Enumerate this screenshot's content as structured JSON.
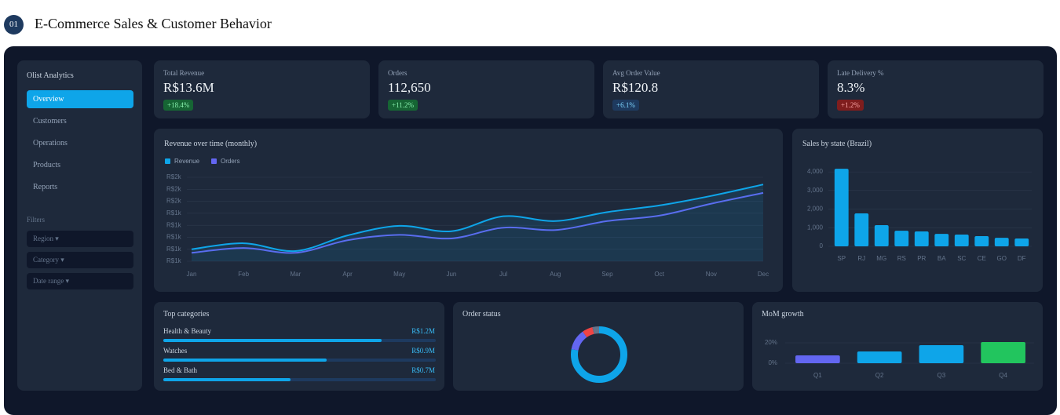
{
  "header": {
    "badge": "01",
    "title": "E-Commerce Sales & Customer Behavior"
  },
  "sidebar": {
    "brand": "Olist Analytics",
    "nav": [
      "Overview",
      "Customers",
      "Operations",
      "Products",
      "Reports"
    ],
    "active": 0,
    "filters_title": "Filters",
    "filters": [
      "Region ▾",
      "Category ▾",
      "Date range ▾"
    ]
  },
  "kpis": [
    {
      "label": "Total Revenue",
      "value": "R$13.6M",
      "delta": "+18.4%",
      "badge_color": "#166534",
      "badge_text": "#86efac"
    },
    {
      "label": "Orders",
      "value": "112,650",
      "delta": "+11.2%",
      "badge_color": "#166534",
      "badge_text": "#86efac"
    },
    {
      "label": "Avg Order Value",
      "value": "R$120.8",
      "delta": "+6.1%",
      "badge_color": "#1e3a5f",
      "badge_text": "#7dd3fc"
    },
    {
      "label": "Late Delivery %",
      "value": "8.3%",
      "delta": "+1.2%",
      "badge_color": "#7f1d1d",
      "badge_text": "#fca5a5"
    }
  ],
  "chart_data": [
    {
      "type": "line",
      "title": "Revenue over time (monthly)",
      "categories": [
        "Jan",
        "Feb",
        "Mar",
        "Apr",
        "May",
        "Jun",
        "Jul",
        "Aug",
        "Sep",
        "Oct",
        "Nov",
        "Dec"
      ],
      "series": [
        {
          "name": "Revenue",
          "color": "#0ea5e9",
          "values": [
            1100,
            1150,
            1085,
            1215,
            1295,
            1250,
            1375,
            1335,
            1410,
            1465,
            1545,
            1640
          ]
        },
        {
          "name": "Orders",
          "color": "#6366f1",
          "values": [
            1070,
            1110,
            1070,
            1175,
            1220,
            1190,
            1280,
            1260,
            1335,
            1380,
            1480,
            1570
          ]
        }
      ],
      "ylim": [
        1000,
        1700
      ],
      "yticks": [
        {
          "value": 1000,
          "label": "R$1k"
        },
        {
          "value": 1100,
          "label": "R$1k"
        },
        {
          "value": 1200,
          "label": "R$1k"
        },
        {
          "value": 1300,
          "label": "R$1k"
        },
        {
          "value": 1400,
          "label": "R$1k"
        },
        {
          "value": 1500,
          "label": "R$2k"
        },
        {
          "value": 1600,
          "label": "R$2k"
        },
        {
          "value": 1700,
          "label": "R$2k"
        }
      ],
      "grid": true,
      "legend": "top-left",
      "area": true
    },
    {
      "type": "bar",
      "title": "Sales by state (Brazil)",
      "categories": [
        "SP",
        "RJ",
        "MG",
        "RS",
        "PR",
        "BA",
        "SC",
        "CE",
        "GO",
        "DF"
      ],
      "values": [
        4170,
        1770,
        1140,
        840,
        800,
        670,
        630,
        550,
        460,
        420
      ],
      "color": "#0ea5e9",
      "ylim": [
        0,
        4300
      ],
      "yticks": [
        0,
        {
          "value": 1000,
          "label": "1,000"
        },
        {
          "value": 2000,
          "label": "2,000"
        },
        {
          "value": 3000,
          "label": "3,000"
        },
        {
          "value": 4000,
          "label": "4,000"
        }
      ],
      "grid": true
    },
    {
      "type": "hbar",
      "title": "Top categories",
      "categories": [
        "Health & Beauty",
        "Watches",
        "Bed & Bath"
      ],
      "values": [
        1200000,
        900000,
        700000
      ],
      "value_labels": [
        "R$1.2M",
        "R$0.9M",
        "R$0.7M"
      ],
      "xlim": [
        0,
        1500000
      ],
      "color": "#0ea5e9"
    },
    {
      "type": "donut",
      "title": "Order status",
      "values": [
        78,
        12,
        6,
        4
      ],
      "colors": [
        "#0ea5e9",
        "#6366f1",
        "#ef4444",
        "#64748b"
      ]
    },
    {
      "type": "bar",
      "title": "MoM growth",
      "categories": [
        "Q1",
        "Q2",
        "Q3",
        "Q4"
      ],
      "values": [
        7.7,
        11.5,
        17.7,
        20.8
      ],
      "colors": [
        "#6366f1",
        "#0ea5e9",
        "#0ea5e9",
        "#22c55e"
      ],
      "ylim": [
        0,
        25
      ],
      "yticks": [
        {
          "value": 0,
          "label": "0%"
        },
        {
          "value": 20,
          "label": "20%"
        }
      ],
      "grid": true
    }
  ]
}
